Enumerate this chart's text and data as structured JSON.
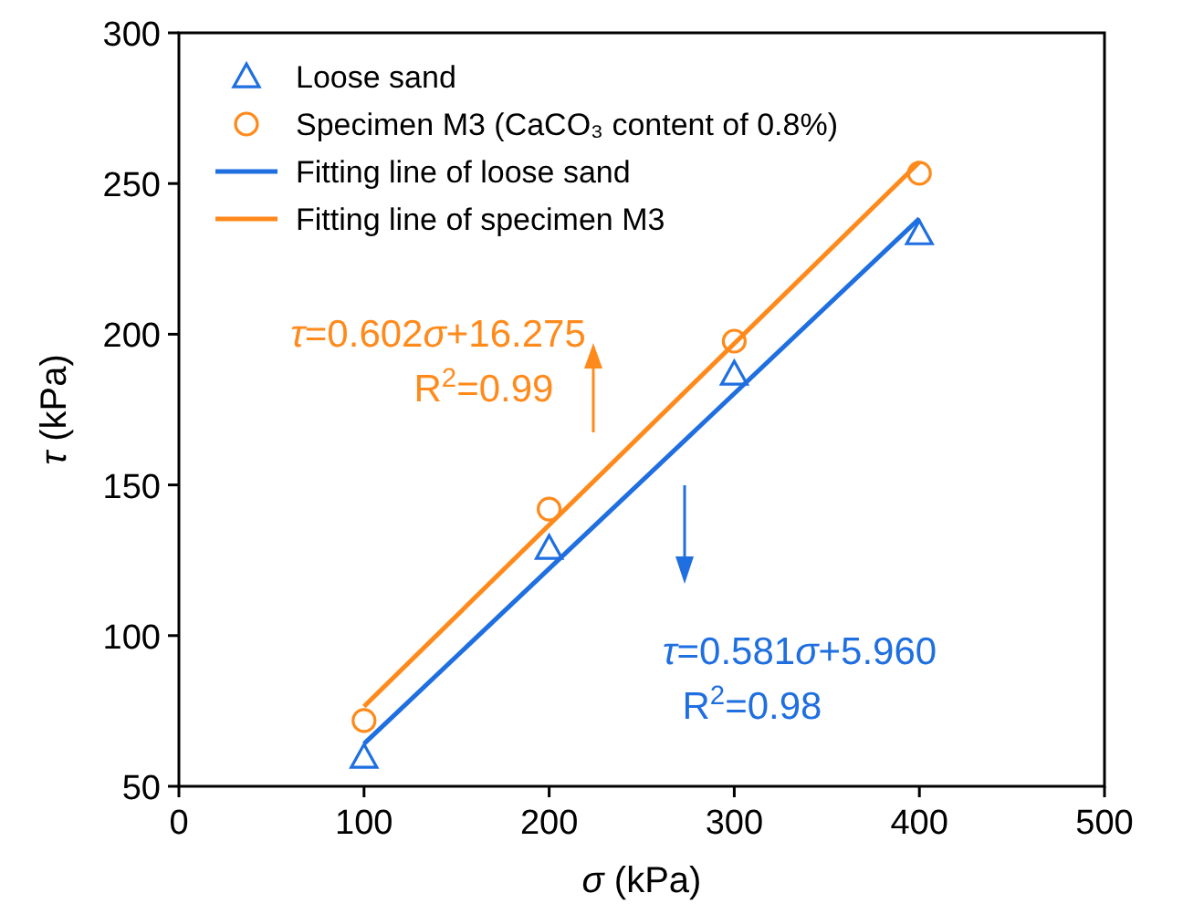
{
  "chart_data": {
    "type": "scatter",
    "xlabel": "σ (kPa)",
    "ylabel": "τ (kPa)",
    "xlim": [
      0,
      500
    ],
    "xticks": [
      0,
      100,
      200,
      300,
      400,
      500
    ],
    "ylim": [
      50,
      300
    ],
    "yticks": [
      50,
      100,
      150,
      200,
      250,
      300
    ],
    "grid": false,
    "legend": "top left",
    "series": [
      {
        "name": "Loose sand",
        "marker": "triangle",
        "color": "#1f6fe0",
        "x": [
          100,
          200,
          300,
          400
        ],
        "values": [
          59.7,
          129,
          186.8,
          233.4
        ]
      },
      {
        "name": "Specimen M3 (CaCO₃ content of 0.8%)",
        "marker": "circle",
        "color": "#ff8a1c",
        "x": [
          100,
          200,
          300,
          400
        ],
        "values": [
          71.8,
          142,
          197.7,
          253.4
        ]
      },
      {
        "name": "Fitting line of loose sand",
        "type": "line",
        "marker": "none",
        "line_style": "solid",
        "color": "#1f6fe0",
        "x": [
          100,
          400
        ],
        "values": [
          64.1,
          238.4
        ]
      },
      {
        "name": "Fitting line of specimen M3",
        "type": "line",
        "marker": "none",
        "line_style": "solid",
        "color": "#ff8a1c",
        "x": [
          100,
          400
        ],
        "values": [
          76.5,
          257.1
        ]
      }
    ],
    "annotations": [
      "τ=0.602σ+16.275",
      "R$^{2}$=0.99",
      "τ=0.581σ+5.960",
      "R$^{2}$=0.98"
    ]
  }
}
